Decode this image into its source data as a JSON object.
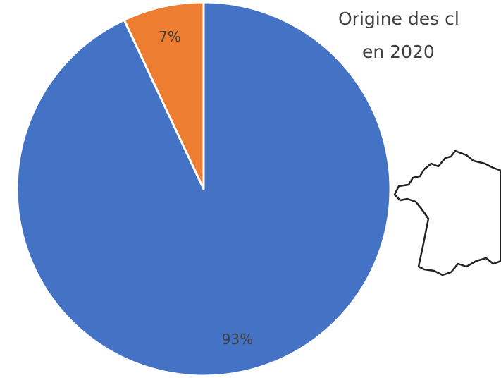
{
  "chart_data": {
    "type": "pie",
    "title_lines": [
      "Origine des cl",
      "en 2020"
    ],
    "values": [
      93,
      7
    ],
    "value_labels": [
      "93%",
      "7%"
    ],
    "colors": [
      "#4472c4",
      "#ed7d31"
    ]
  }
}
